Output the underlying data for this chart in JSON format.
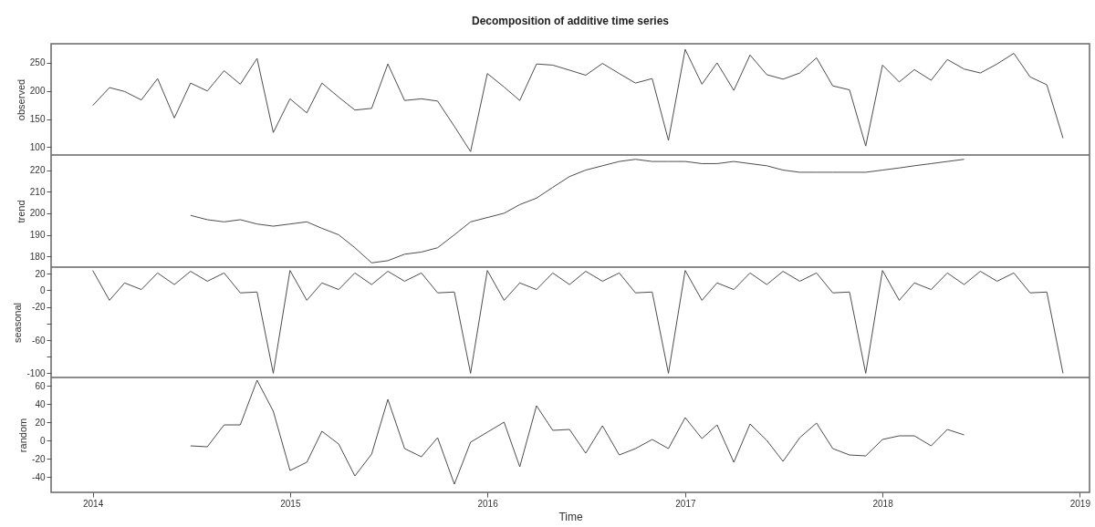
{
  "chart_data": [
    {
      "type": "line",
      "title": "Decomposition of additive time series",
      "ylabel": "observed",
      "color": "#4d4d4d",
      "tick_labels": "y",
      "x": [
        "2014-01",
        "2014-02",
        "2014-03",
        "2014-04",
        "2014-05",
        "2014-06",
        "2014-07",
        "2014-08",
        "2014-09",
        "2014-10",
        "2014-11",
        "2014-12",
        "2015-01",
        "2015-02",
        "2015-03",
        "2015-04",
        "2015-05",
        "2015-06",
        "2015-07",
        "2015-08",
        "2015-09",
        "2015-10",
        "2015-11",
        "2015-12",
        "2016-01",
        "2016-02",
        "2016-03",
        "2016-04",
        "2016-05",
        "2016-06",
        "2016-07",
        "2016-08",
        "2016-09",
        "2016-10",
        "2016-11",
        "2016-12",
        "2017-01",
        "2017-02",
        "2017-03",
        "2017-04",
        "2017-05",
        "2017-06",
        "2017-07",
        "2017-08",
        "2017-09",
        "2017-10",
        "2017-11",
        "2017-12",
        "2018-01",
        "2018-02",
        "2018-03",
        "2018-04",
        "2018-05",
        "2018-06",
        "2018-07",
        "2018-08",
        "2018-09",
        "2018-10",
        "2018-11",
        "2018-12"
      ],
      "values": [
        174,
        206,
        199,
        184,
        222,
        152,
        214,
        200,
        236,
        212,
        258,
        126,
        186,
        161,
        214,
        189,
        166,
        169,
        248,
        183,
        186,
        182,
        137,
        92,
        231,
        207,
        183,
        248,
        246,
        237,
        228,
        249,
        231,
        214,
        222,
        112,
        274,
        212,
        250,
        201,
        264,
        229,
        221,
        232,
        259,
        209,
        202,
        102,
        246,
        216,
        238,
        219,
        256,
        239,
        232,
        248,
        267,
        225,
        211,
        116
      ],
      "xlim": [
        "2013-10-16",
        "2019-01-19"
      ],
      "xticks": [
        "2014",
        "2015",
        "2016",
        "2017",
        "2018",
        "2019"
      ],
      "ylim": [
        86,
        284
      ],
      "yticks": [
        100,
        150,
        200,
        250
      ]
    },
    {
      "type": "line",
      "ylabel": "trend",
      "color": "#4d4d4d",
      "tick_labels": "y",
      "x": [
        "2014-07",
        "2014-08",
        "2014-09",
        "2014-10",
        "2014-11",
        "2014-12",
        "2015-01",
        "2015-02",
        "2015-03",
        "2015-04",
        "2015-05",
        "2015-06",
        "2015-07",
        "2015-08",
        "2015-09",
        "2015-10",
        "2015-11",
        "2015-12",
        "2016-01",
        "2016-02",
        "2016-03",
        "2016-04",
        "2016-05",
        "2016-06",
        "2016-07",
        "2016-08",
        "2016-09",
        "2016-10",
        "2016-11",
        "2016-12",
        "2017-01",
        "2017-02",
        "2017-03",
        "2017-04",
        "2017-05",
        "2017-06",
        "2017-07",
        "2017-08",
        "2017-09",
        "2017-10",
        "2017-11",
        "2017-12",
        "2018-01",
        "2018-02",
        "2018-03",
        "2018-04",
        "2018-05",
        "2018-06"
      ],
      "values": [
        199,
        197,
        196,
        197,
        195,
        194,
        195,
        196,
        193,
        190,
        184,
        177,
        178,
        181,
        182,
        184,
        190,
        196,
        198,
        200,
        204,
        207,
        212,
        217,
        220,
        222,
        224,
        225,
        224,
        224,
        224,
        223,
        223,
        224,
        223,
        222,
        220,
        219,
        219,
        219,
        219,
        219,
        220,
        221,
        222,
        223,
        224,
        225
      ],
      "xlim": [
        "2013-10-16",
        "2019-01-19"
      ],
      "xticks": [
        "2014",
        "2015",
        "2016",
        "2017",
        "2018",
        "2019"
      ],
      "ylim": [
        175,
        227
      ],
      "yticks": [
        180,
        190,
        200,
        210,
        220
      ]
    },
    {
      "type": "line",
      "ylabel": "seasonal",
      "color": "#4d4d4d",
      "tick_labels": "y",
      "x": [
        "2014-01",
        "2014-02",
        "2014-03",
        "2014-04",
        "2014-05",
        "2014-06",
        "2014-07",
        "2014-08",
        "2014-09",
        "2014-10",
        "2014-11",
        "2014-12",
        "2015-01",
        "2015-02",
        "2015-03",
        "2015-04",
        "2015-05",
        "2015-06",
        "2015-07",
        "2015-08",
        "2015-09",
        "2015-10",
        "2015-11",
        "2015-12",
        "2016-01",
        "2016-02",
        "2016-03",
        "2016-04",
        "2016-05",
        "2016-06",
        "2016-07",
        "2016-08",
        "2016-09",
        "2016-10",
        "2016-11",
        "2016-12",
        "2017-01",
        "2017-02",
        "2017-03",
        "2017-04",
        "2017-05",
        "2017-06",
        "2017-07",
        "2017-08",
        "2017-09",
        "2017-10",
        "2017-11",
        "2017-12",
        "2018-01",
        "2018-02",
        "2018-03",
        "2018-04",
        "2018-05",
        "2018-06",
        "2018-07",
        "2018-08",
        "2018-09",
        "2018-10",
        "2018-11",
        "2018-12"
      ],
      "values": [
        24,
        -12,
        9,
        1,
        21,
        7,
        23,
        11,
        21,
        -3,
        -2,
        -100,
        24,
        -12,
        9,
        1,
        21,
        7,
        23,
        11,
        21,
        -3,
        -2,
        -100,
        24,
        -12,
        9,
        1,
        21,
        7,
        23,
        11,
        21,
        -3,
        -2,
        -100,
        24,
        -12,
        9,
        1,
        21,
        7,
        23,
        11,
        21,
        -3,
        -2,
        -100,
        24,
        -12,
        9,
        1,
        21,
        7,
        23,
        11,
        21,
        -3,
        -2,
        -100
      ],
      "xlim": [
        "2013-10-16",
        "2019-01-19"
      ],
      "xticks": [
        "2014",
        "2015",
        "2016",
        "2017",
        "2018",
        "2019"
      ],
      "ylim": [
        -105,
        28
      ],
      "yticks": [
        20,
        0,
        -20,
        {
          "value": -40,
          "label": null
        },
        -60,
        {
          "value": -80,
          "label": null
        },
        -100
      ]
    },
    {
      "type": "line",
      "ylabel": "random",
      "xlabel": "Time",
      "color": "#4d4d4d",
      "x": [
        "2014-07",
        "2014-08",
        "2014-09",
        "2014-10",
        "2014-11",
        "2014-12",
        "2015-01",
        "2015-02",
        "2015-03",
        "2015-04",
        "2015-05",
        "2015-06",
        "2015-07",
        "2015-08",
        "2015-09",
        "2015-10",
        "2015-11",
        "2015-12",
        "2016-01",
        "2016-02",
        "2016-03",
        "2016-04",
        "2016-05",
        "2016-06",
        "2016-07",
        "2016-08",
        "2016-09",
        "2016-10",
        "2016-11",
        "2016-12",
        "2017-01",
        "2017-02",
        "2017-03",
        "2017-04",
        "2017-05",
        "2017-06",
        "2017-07",
        "2017-08",
        "2017-09",
        "2017-10",
        "2017-11",
        "2017-12",
        "2018-01",
        "2018-02",
        "2018-03",
        "2018-04",
        "2018-05",
        "2018-06"
      ],
      "values": [
        -6,
        -7,
        17,
        17,
        66,
        32,
        -33,
        -24,
        10,
        -4,
        -39,
        -15,
        45,
        -9,
        -18,
        3,
        -48,
        -2,
        9,
        20,
        -29,
        38,
        11,
        12,
        -14,
        16,
        -16,
        -9,
        1,
        -9,
        25,
        2,
        17,
        -24,
        18,
        0,
        -23,
        3,
        19,
        -9,
        -16,
        -17,
        1,
        5,
        5,
        -6,
        12,
        6
      ],
      "xlim": [
        "2013-10-16",
        "2019-01-19"
      ],
      "xticks": [
        "2014",
        "2015",
        "2016",
        "2017",
        "2018",
        "2019"
      ],
      "ylim": [
        -57,
        69
      ],
      "yticks": [
        60,
        40,
        20,
        0,
        -20,
        -40
      ]
    }
  ]
}
